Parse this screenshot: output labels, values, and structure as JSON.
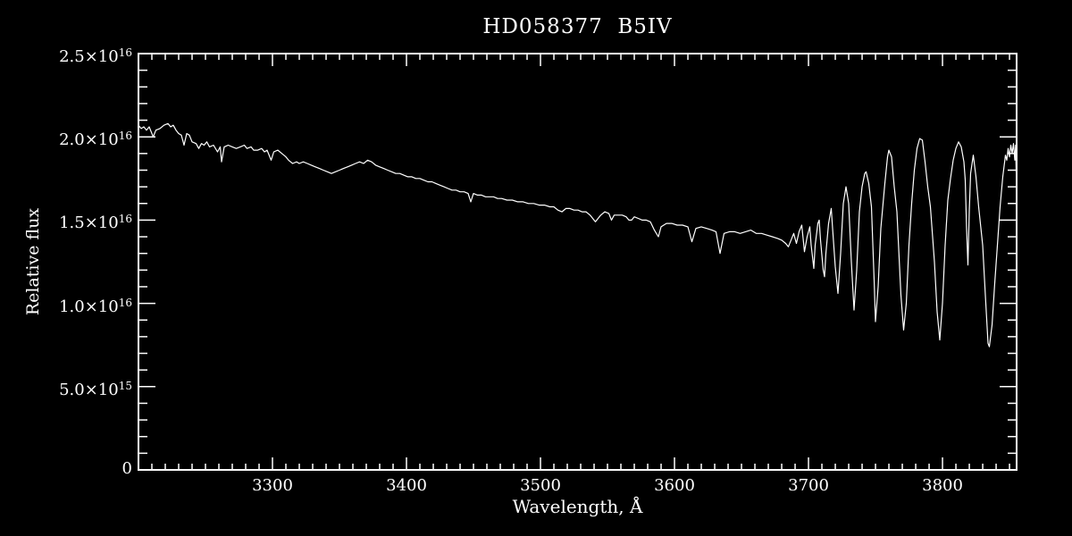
{
  "figure": {
    "background": "#000000",
    "foreground": "#ffffff"
  },
  "chart_data": {
    "type": "line",
    "title": "HD058377  B5IV",
    "xlabel": "Wavelength, Å",
    "ylabel": "Relative flux",
    "xlim": [
      3200,
      3855.3
    ],
    "ylim_1e16": [
      0,
      2.5
    ],
    "grid": false,
    "legend": "none",
    "x_ticks": [
      {
        "value": 3300,
        "label": "3300"
      },
      {
        "value": 3400,
        "label": "3400"
      },
      {
        "value": 3500,
        "label": "3500"
      },
      {
        "value": 3600,
        "label": "3600"
      },
      {
        "value": 3700,
        "label": "3700"
      },
      {
        "value": 3800,
        "label": "3800"
      }
    ],
    "x_minor_step": 10,
    "y_ticks": [
      {
        "value": 0.0,
        "mantissa": "0",
        "exponent": ""
      },
      {
        "value": 0.5,
        "mantissa": "5.0×10",
        "exponent": "15"
      },
      {
        "value": 1.0,
        "mantissa": "1.0×10",
        "exponent": "16"
      },
      {
        "value": 1.5,
        "mantissa": "1.5×10",
        "exponent": "16"
      },
      {
        "value": 2.0,
        "mantissa": "2.0×10",
        "exponent": "16"
      },
      {
        "value": 2.5,
        "mantissa": "2.5×10",
        "exponent": "16"
      }
    ],
    "y_minor_step": 0.1,
    "line_color": "#ffffff",
    "series": [
      {
        "points_wavelength_A_flux_1e16": [
          [
            3200,
            2.07
          ],
          [
            3202,
            2.05
          ],
          [
            3204,
            2.06
          ],
          [
            3206,
            2.04
          ],
          [
            3208,
            2.06
          ],
          [
            3211,
            2.0
          ],
          [
            3213,
            2.04
          ],
          [
            3216,
            2.05
          ],
          [
            3219,
            2.07
          ],
          [
            3222,
            2.08
          ],
          [
            3224,
            2.06
          ],
          [
            3226,
            2.07
          ],
          [
            3228,
            2.04
          ],
          [
            3230,
            2.02
          ],
          [
            3232,
            2.01
          ],
          [
            3234,
            1.95
          ],
          [
            3236,
            2.02
          ],
          [
            3238,
            2.01
          ],
          [
            3240,
            1.97
          ],
          [
            3243,
            1.96
          ],
          [
            3245,
            1.93
          ],
          [
            3247,
            1.96
          ],
          [
            3249,
            1.95
          ],
          [
            3251,
            1.97
          ],
          [
            3253,
            1.94
          ],
          [
            3256,
            1.95
          ],
          [
            3259,
            1.91
          ],
          [
            3261,
            1.94
          ],
          [
            3262,
            1.85
          ],
          [
            3264,
            1.94
          ],
          [
            3267,
            1.95
          ],
          [
            3270,
            1.94
          ],
          [
            3273,
            1.93
          ],
          [
            3276,
            1.94
          ],
          [
            3279,
            1.95
          ],
          [
            3281,
            1.93
          ],
          [
            3284,
            1.94
          ],
          [
            3286,
            1.92
          ],
          [
            3289,
            1.92
          ],
          [
            3292,
            1.93
          ],
          [
            3294,
            1.91
          ],
          [
            3296,
            1.92
          ],
          [
            3299,
            1.86
          ],
          [
            3301,
            1.91
          ],
          [
            3304,
            1.92
          ],
          [
            3307,
            1.9
          ],
          [
            3310,
            1.88
          ],
          [
            3312,
            1.86
          ],
          [
            3315,
            1.84
          ],
          [
            3318,
            1.85
          ],
          [
            3320,
            1.84
          ],
          [
            3323,
            1.85
          ],
          [
            3326,
            1.84
          ],
          [
            3329,
            1.83
          ],
          [
            3332,
            1.82
          ],
          [
            3335,
            1.81
          ],
          [
            3338,
            1.8
          ],
          [
            3341,
            1.79
          ],
          [
            3344,
            1.78
          ],
          [
            3347,
            1.79
          ],
          [
            3350,
            1.8
          ],
          [
            3353,
            1.81
          ],
          [
            3356,
            1.82
          ],
          [
            3359,
            1.83
          ],
          [
            3362,
            1.84
          ],
          [
            3365,
            1.85
          ],
          [
            3368,
            1.84
          ],
          [
            3371,
            1.86
          ],
          [
            3374,
            1.85
          ],
          [
            3377,
            1.83
          ],
          [
            3380,
            1.82
          ],
          [
            3383,
            1.81
          ],
          [
            3386,
            1.8
          ],
          [
            3389,
            1.79
          ],
          [
            3392,
            1.78
          ],
          [
            3395,
            1.78
          ],
          [
            3398,
            1.77
          ],
          [
            3401,
            1.76
          ],
          [
            3404,
            1.76
          ],
          [
            3407,
            1.75
          ],
          [
            3410,
            1.75
          ],
          [
            3413,
            1.74
          ],
          [
            3416,
            1.73
          ],
          [
            3419,
            1.73
          ],
          [
            3422,
            1.72
          ],
          [
            3425,
            1.71
          ],
          [
            3428,
            1.7
          ],
          [
            3431,
            1.69
          ],
          [
            3434,
            1.68
          ],
          [
            3437,
            1.68
          ],
          [
            3440,
            1.67
          ],
          [
            3443,
            1.67
          ],
          [
            3446,
            1.66
          ],
          [
            3448,
            1.61
          ],
          [
            3450,
            1.66
          ],
          [
            3453,
            1.65
          ],
          [
            3456,
            1.65
          ],
          [
            3459,
            1.64
          ],
          [
            3462,
            1.64
          ],
          [
            3465,
            1.64
          ],
          [
            3468,
            1.63
          ],
          [
            3471,
            1.63
          ],
          [
            3475,
            1.62
          ],
          [
            3479,
            1.62
          ],
          [
            3483,
            1.61
          ],
          [
            3487,
            1.61
          ],
          [
            3491,
            1.6
          ],
          [
            3495,
            1.6
          ],
          [
            3499,
            1.59
          ],
          [
            3503,
            1.59
          ],
          [
            3507,
            1.58
          ],
          [
            3510,
            1.58
          ],
          [
            3513,
            1.56
          ],
          [
            3516,
            1.55
          ],
          [
            3519,
            1.57
          ],
          [
            3522,
            1.57
          ],
          [
            3525,
            1.56
          ],
          [
            3528,
            1.56
          ],
          [
            3531,
            1.55
          ],
          [
            3534,
            1.55
          ],
          [
            3537,
            1.53
          ],
          [
            3539,
            1.51
          ],
          [
            3541,
            1.49
          ],
          [
            3543,
            1.51
          ],
          [
            3545,
            1.53
          ],
          [
            3548,
            1.55
          ],
          [
            3551,
            1.54
          ],
          [
            3553,
            1.5
          ],
          [
            3555,
            1.53
          ],
          [
            3558,
            1.53
          ],
          [
            3561,
            1.53
          ],
          [
            3564,
            1.52
          ],
          [
            3566,
            1.5
          ],
          [
            3568,
            1.5
          ],
          [
            3570,
            1.52
          ],
          [
            3573,
            1.51
          ],
          [
            3576,
            1.5
          ],
          [
            3579,
            1.5
          ],
          [
            3582,
            1.49
          ],
          [
            3585,
            1.44
          ],
          [
            3588,
            1.4
          ],
          [
            3590,
            1.46
          ],
          [
            3594,
            1.48
          ],
          [
            3598,
            1.48
          ],
          [
            3602,
            1.47
          ],
          [
            3606,
            1.47
          ],
          [
            3610,
            1.46
          ],
          [
            3613,
            1.37
          ],
          [
            3616,
            1.45
          ],
          [
            3620,
            1.46
          ],
          [
            3624,
            1.45
          ],
          [
            3628,
            1.44
          ],
          [
            3631,
            1.43
          ],
          [
            3634,
            1.3
          ],
          [
            3637,
            1.42
          ],
          [
            3641,
            1.43
          ],
          [
            3645,
            1.43
          ],
          [
            3649,
            1.42
          ],
          [
            3653,
            1.43
          ],
          [
            3657,
            1.44
          ],
          [
            3661,
            1.42
          ],
          [
            3665,
            1.42
          ],
          [
            3669,
            1.41
          ],
          [
            3673,
            1.4
          ],
          [
            3677,
            1.39
          ],
          [
            3680,
            1.38
          ],
          [
            3683,
            1.36
          ],
          [
            3685,
            1.34
          ],
          [
            3687,
            1.38
          ],
          [
            3689,
            1.42
          ],
          [
            3691,
            1.36
          ],
          [
            3693,
            1.43
          ],
          [
            3695,
            1.47
          ],
          [
            3697,
            1.31
          ],
          [
            3699,
            1.4
          ],
          [
            3701,
            1.46
          ],
          [
            3702,
            1.35
          ],
          [
            3704,
            1.21
          ],
          [
            3705,
            1.35
          ],
          [
            3707,
            1.48
          ],
          [
            3708,
            1.5
          ],
          [
            3709,
            1.38
          ],
          [
            3711,
            1.2
          ],
          [
            3712,
            1.16
          ],
          [
            3713,
            1.3
          ],
          [
            3715,
            1.48
          ],
          [
            3717,
            1.57
          ],
          [
            3718,
            1.45
          ],
          [
            3720,
            1.22
          ],
          [
            3722,
            1.06
          ],
          [
            3724,
            1.3
          ],
          [
            3726,
            1.6
          ],
          [
            3728,
            1.7
          ],
          [
            3730,
            1.6
          ],
          [
            3732,
            1.25
          ],
          [
            3734,
            0.96
          ],
          [
            3736,
            1.2
          ],
          [
            3738,
            1.55
          ],
          [
            3740,
            1.7
          ],
          [
            3742,
            1.78
          ],
          [
            3743,
            1.79
          ],
          [
            3745,
            1.72
          ],
          [
            3747,
            1.58
          ],
          [
            3749,
            1.14
          ],
          [
            3750,
            0.89
          ],
          [
            3752,
            1.1
          ],
          [
            3754,
            1.45
          ],
          [
            3757,
            1.72
          ],
          [
            3759,
            1.88
          ],
          [
            3760,
            1.92
          ],
          [
            3762,
            1.88
          ],
          [
            3764,
            1.7
          ],
          [
            3766,
            1.55
          ],
          [
            3769,
            1.05
          ],
          [
            3771,
            0.84
          ],
          [
            3773,
            1.0
          ],
          [
            3775,
            1.35
          ],
          [
            3777,
            1.6
          ],
          [
            3779,
            1.8
          ],
          [
            3781,
            1.93
          ],
          [
            3783,
            1.99
          ],
          [
            3785,
            1.98
          ],
          [
            3787,
            1.85
          ],
          [
            3789,
            1.7
          ],
          [
            3791,
            1.58
          ],
          [
            3794,
            1.25
          ],
          [
            3796,
            0.95
          ],
          [
            3798,
            0.78
          ],
          [
            3800,
            1.0
          ],
          [
            3802,
            1.35
          ],
          [
            3804,
            1.62
          ],
          [
            3806,
            1.75
          ],
          [
            3808,
            1.86
          ],
          [
            3810,
            1.93
          ],
          [
            3812,
            1.97
          ],
          [
            3814,
            1.94
          ],
          [
            3816,
            1.85
          ],
          [
            3817,
            1.74
          ],
          [
            3818,
            1.45
          ],
          [
            3819,
            1.23
          ],
          [
            3820,
            1.55
          ],
          [
            3821,
            1.78
          ],
          [
            3823,
            1.89
          ],
          [
            3825,
            1.76
          ],
          [
            3827,
            1.58
          ],
          [
            3830,
            1.35
          ],
          [
            3832,
            1.05
          ],
          [
            3834,
            0.76
          ],
          [
            3835,
            0.74
          ],
          [
            3837,
            0.87
          ],
          [
            3839,
            1.12
          ],
          [
            3841,
            1.35
          ],
          [
            3843,
            1.58
          ],
          [
            3845,
            1.76
          ],
          [
            3847,
            1.89
          ],
          [
            3848,
            1.86
          ],
          [
            3849,
            1.93
          ],
          [
            3850,
            1.88
          ],
          [
            3851,
            1.95
          ],
          [
            3852,
            1.9
          ],
          [
            3853,
            1.96
          ],
          [
            3854,
            1.86
          ],
          [
            3854.6,
            1.95
          ],
          [
            3855,
            1.79
          ],
          [
            3855.3,
            1.9
          ]
        ]
      }
    ]
  }
}
